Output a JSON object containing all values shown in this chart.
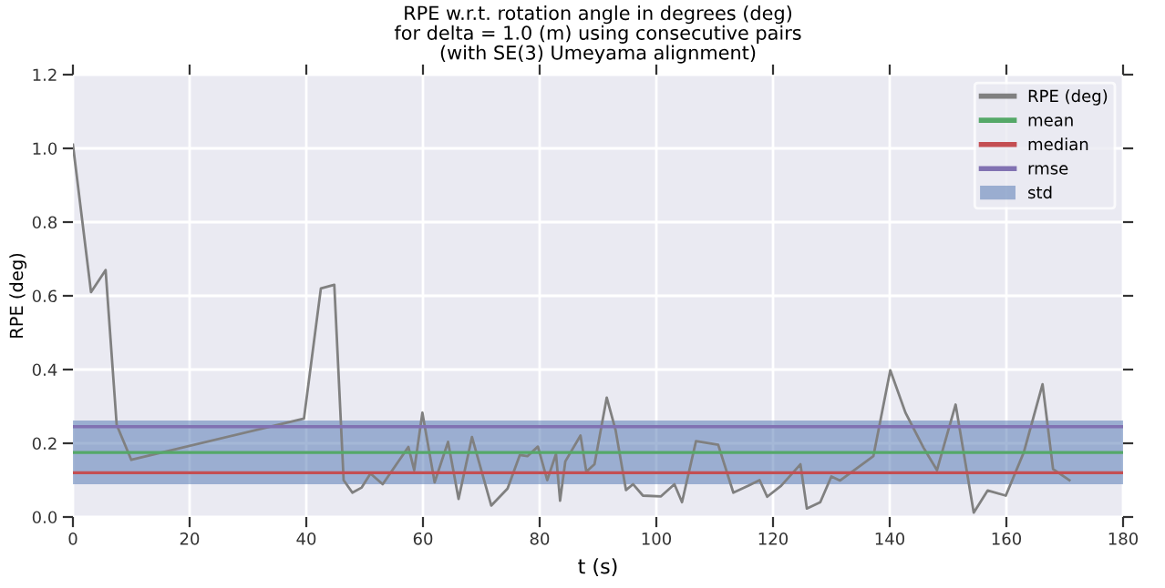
{
  "chart_data": {
    "type": "line",
    "title": "RPE w.r.t. rotation angle in degrees (deg)\nfor delta = 1.0 (m) using consecutive pairs\n(with SE(3) Umeyama alignment)",
    "xlabel": "t (s)",
    "ylabel": "RPE (deg)",
    "series": [
      {
        "name": "RPE (deg)",
        "color": "#808080",
        "x": [
          0,
          3.1,
          5.6,
          7.5,
          10,
          39.6,
          42.5,
          44.8,
          46.4,
          47.9,
          49.5,
          51,
          53.1,
          57.5,
          58.5,
          59.9,
          62,
          64.3,
          66.1,
          68.4,
          71.7,
          74.5,
          76.6,
          77.9,
          79.7,
          81.3,
          82.8,
          83.5,
          84.4,
          87,
          88,
          89.4,
          91.5,
          93,
          94.8,
          96,
          97.7,
          100.8,
          103.1,
          104.4,
          106.8,
          110.6,
          113.2,
          115.8,
          117.7,
          119,
          121.4,
          124.7,
          125.8,
          128.1,
          130,
          131.5,
          137.2,
          140.1,
          142.7,
          145.8,
          148.1,
          151.3,
          154.4,
          156.8,
          159.9,
          163,
          166.2,
          168,
          170.8
        ],
        "values": [
          1.01,
          0.61,
          0.67,
          0.25,
          0.155,
          0.267,
          0.62,
          0.63,
          0.1,
          0.066,
          0.08,
          0.118,
          0.089,
          0.19,
          0.127,
          0.283,
          0.094,
          0.204,
          0.049,
          0.217,
          0.031,
          0.077,
          0.168,
          0.165,
          0.191,
          0.1,
          0.171,
          0.044,
          0.151,
          0.221,
          0.123,
          0.143,
          0.324,
          0.237,
          0.073,
          0.089,
          0.058,
          0.056,
          0.089,
          0.04,
          0.206,
          0.196,
          0.066,
          0.085,
          0.1,
          0.055,
          0.085,
          0.143,
          0.023,
          0.04,
          0.11,
          0.099,
          0.165,
          0.398,
          0.283,
          0.188,
          0.127,
          0.305,
          0.012,
          0.072,
          0.058,
          0.176,
          0.36,
          0.13,
          0.1
        ]
      }
    ],
    "ref_lines": [
      {
        "axis": "y",
        "value": 0.175,
        "label": "mean",
        "color": "#55a868"
      },
      {
        "axis": "y",
        "value": 0.12,
        "label": "median",
        "color": "#c44e52"
      },
      {
        "axis": "y",
        "value": 0.245,
        "label": "rmse",
        "color": "#8172b2"
      }
    ],
    "bands": [
      {
        "axis": "y",
        "from": 0.089,
        "to": 0.262,
        "label": "std",
        "color": "#4c72b0"
      }
    ],
    "xlim": [
      0,
      180
    ],
    "xticks": [
      0,
      20,
      40,
      60,
      80,
      100,
      120,
      140,
      160,
      180
    ],
    "ylim": [
      0.0,
      1.2
    ],
    "yticks": [
      {
        "value": 0.0,
        "label": "0.0"
      },
      {
        "value": 0.2,
        "label": "0.2"
      },
      {
        "value": 0.4,
        "label": "0.4"
      },
      {
        "value": 0.6,
        "label": "0.6"
      },
      {
        "value": 0.8,
        "label": "0.8"
      },
      {
        "value": 1.0,
        "label": "1.0"
      },
      {
        "value": 1.2,
        "label": "1.2"
      }
    ],
    "grid": true,
    "legend": "top right",
    "line_style": "solid",
    "marker": "none"
  }
}
